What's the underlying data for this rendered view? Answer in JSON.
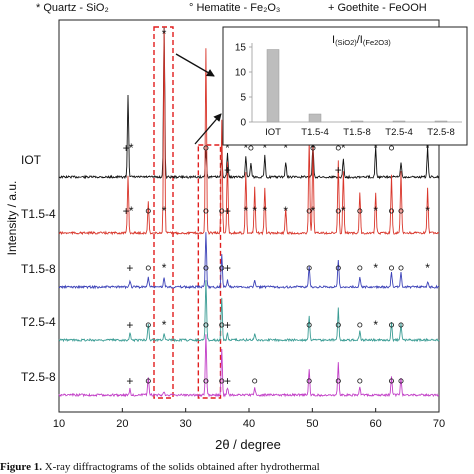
{
  "legend": {
    "quartz": "* Quartz - SiO₂",
    "hematite": "° Hematite - Fe₂O₃",
    "goethite": "+ Goethite - FeOOH"
  },
  "caption": {
    "label": "Figure 1.",
    "text": " X-ray diffractograms of the solids obtained after hydrothermal"
  },
  "chart_data": [
    {
      "type": "line",
      "xlabel": "2θ / degree",
      "ylabel": "Intensity / a.u.",
      "xlim": [
        10,
        70
      ],
      "x_ticks": [
        10,
        20,
        30,
        40,
        50,
        60,
        70
      ],
      "grid": false,
      "series": [
        {
          "name": "IOT",
          "color": "#111111",
          "peaks": [
            [
              20.9,
              0.55
            ],
            [
              26.6,
              1.0
            ],
            [
              33.2,
              0.18
            ],
            [
              35.7,
              0.12
            ],
            [
              36.6,
              0.16
            ],
            [
              39.5,
              0.14
            ],
            [
              40.3,
              0.1
            ],
            [
              42.5,
              0.14
            ],
            [
              45.8,
              0.1
            ],
            [
              50.1,
              0.22
            ],
            [
              54.9,
              0.12
            ],
            [
              60.0,
              0.2
            ],
            [
              64.0,
              0.1
            ],
            [
              68.2,
              0.2
            ]
          ]
        },
        {
          "name": "T1.5-4",
          "color": "#d9362b",
          "peaks": [
            [
              20.9,
              0.28
            ],
            [
              24.1,
              0.15
            ],
            [
              26.6,
              1.0
            ],
            [
              33.2,
              0.9
            ],
            [
              35.7,
              0.55
            ],
            [
              36.6,
              0.35
            ],
            [
              39.5,
              0.3
            ],
            [
              40.9,
              0.22
            ],
            [
              42.5,
              0.22
            ],
            [
              45.8,
              0.12
            ],
            [
              49.5,
              0.45
            ],
            [
              50.1,
              0.42
            ],
            [
              54.1,
              0.35
            ],
            [
              54.9,
              0.3
            ],
            [
              57.5,
              0.2
            ],
            [
              60.0,
              0.2
            ],
            [
              62.5,
              0.28
            ],
            [
              64.0,
              0.3
            ],
            [
              68.2,
              0.22
            ]
          ]
        },
        {
          "name": "T1.5-8",
          "color": "#3c42b8",
          "peaks": [
            [
              21.2,
              0.12
            ],
            [
              24.1,
              0.2
            ],
            [
              26.6,
              0.18
            ],
            [
              33.2,
              1.0
            ],
            [
              35.7,
              0.6
            ],
            [
              36.6,
              0.12
            ],
            [
              40.9,
              0.12
            ],
            [
              49.5,
              0.38
            ],
            [
              54.1,
              0.5
            ],
            [
              57.5,
              0.18
            ],
            [
              62.5,
              0.28
            ],
            [
              64.0,
              0.28
            ],
            [
              68.2,
              0.1
            ]
          ]
        },
        {
          "name": "T2.5-4",
          "color": "#3a9c94",
          "peaks": [
            [
              21.2,
              0.12
            ],
            [
              24.1,
              0.28
            ],
            [
              26.6,
              0.12
            ],
            [
              33.2,
              1.0
            ],
            [
              35.7,
              0.7
            ],
            [
              36.6,
              0.12
            ],
            [
              40.9,
              0.12
            ],
            [
              49.5,
              0.4
            ],
            [
              54.1,
              0.55
            ],
            [
              57.5,
              0.15
            ],
            [
              62.5,
              0.3
            ],
            [
              64.0,
              0.28
            ]
          ]
        },
        {
          "name": "T2.5-8",
          "color": "#c23fc7",
          "peaks": [
            [
              21.2,
              0.1
            ],
            [
              24.1,
              0.3
            ],
            [
              26.6,
              0.06
            ],
            [
              33.2,
              1.0
            ],
            [
              35.7,
              0.75
            ],
            [
              36.6,
              0.12
            ],
            [
              40.9,
              0.12
            ],
            [
              49.5,
              0.42
            ],
            [
              54.1,
              0.55
            ],
            [
              57.5,
              0.12
            ],
            [
              62.5,
              0.3
            ],
            [
              64.0,
              0.3
            ]
          ]
        }
      ],
      "highlight_ranges": [
        [
          25.0,
          28.0
        ],
        [
          32.0,
          35.5
        ]
      ],
      "markers": {
        "IOT": {
          "+": [
            20.6
          ],
          "*": [
            21.4,
            26.6,
            36.6,
            39.5,
            42.5,
            45.8,
            50.1,
            54.9,
            60.0,
            68.2
          ],
          "°": [
            33.2,
            40.3,
            50.1,
            54.1,
            62.5
          ],
          "low+": [
            36.6,
            54.1
          ]
        },
        "T1.5-4": {
          "+": [
            20.6,
            36.6
          ],
          "*": [
            21.4,
            26.6,
            39.5,
            40.9,
            42.5,
            45.8,
            50.1,
            54.9,
            60.0,
            68.2
          ],
          "°": [
            24.1,
            33.2,
            35.7,
            49.5,
            54.1,
            57.5,
            62.5,
            64.0
          ]
        },
        "T1.5-8": {
          "+": [
            21.2,
            36.6
          ],
          "*": [
            26.6,
            60.0,
            68.2
          ],
          "°": [
            24.1,
            33.2,
            35.7,
            49.5,
            54.1,
            57.5,
            62.5,
            64.0
          ]
        },
        "T2.5-4": {
          "+": [
            21.2,
            36.6
          ],
          "*": [
            26.6,
            60.0
          ],
          "°": [
            24.1,
            33.2,
            35.7,
            49.5,
            54.1,
            57.5,
            62.5,
            64.0
          ]
        },
        "T2.5-8": {
          "+": [
            21.2,
            36.6
          ],
          "°": [
            24.1,
            33.2,
            35.7,
            40.9,
            49.5,
            54.1,
            57.5,
            62.5,
            64.0
          ]
        }
      }
    },
    {
      "type": "bar",
      "title": "I(SiO2)/I(Fe2O3)",
      "title_main": "I",
      "title_sub1": "(SiO2)",
      "title_mid": "/I",
      "title_sub2": "(Fe2O3)",
      "categories": [
        "IOT",
        "T1.5-4",
        "T1.5-8",
        "T2.5-4",
        "T2.5-8"
      ],
      "values": [
        14.5,
        1.6,
        0.15,
        0.12,
        0.1
      ],
      "ylim": [
        0,
        15
      ],
      "y_ticks": [
        0,
        5,
        10,
        15
      ],
      "color": "#bdbdbd"
    }
  ]
}
